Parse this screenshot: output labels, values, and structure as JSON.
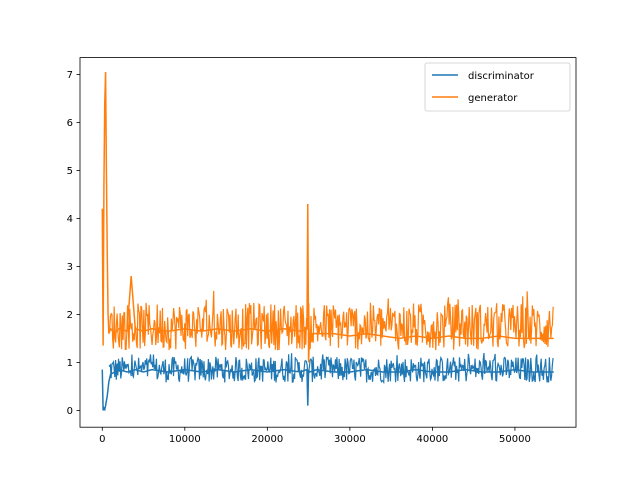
{
  "chart_data": {
    "type": "line",
    "title": "",
    "xlabel": "",
    "ylabel": "",
    "xlim": [
      -2700,
      57400
    ],
    "ylim": [
      -0.35,
      7.35
    ],
    "x_ticks": [
      0,
      10000,
      20000,
      30000,
      40000,
      50000
    ],
    "x_tick_labels": [
      "0",
      "10000",
      "20000",
      "30000",
      "40000",
      "50000"
    ],
    "y_ticks": [
      0,
      1,
      2,
      3,
      4,
      5,
      6,
      7
    ],
    "y_tick_labels": [
      "0",
      "1",
      "2",
      "3",
      "4",
      "5",
      "6",
      "7"
    ],
    "grid": false,
    "legend_position": "upper right",
    "series": [
      {
        "name": "discriminator",
        "color": "#1f77b4",
        "x": [
          0,
          100,
          200,
          300,
          400,
          600,
          800,
          1000,
          1500,
          2000,
          3000,
          4000,
          5000,
          6000,
          8000,
          10000,
          12000,
          14000,
          16000,
          18000,
          20000,
          22000,
          24000,
          24800,
          24900,
          25000,
          25100,
          26000,
          28000,
          30000,
          32000,
          34000,
          36000,
          38000,
          40000,
          42000,
          44000,
          46000,
          48000,
          50000,
          52000,
          54000,
          54700
        ],
        "values": [
          0.85,
          0.0,
          0.05,
          0.02,
          0.1,
          0.3,
          0.6,
          0.75,
          0.8,
          0.85,
          0.8,
          0.85,
          0.8,
          0.85,
          0.8,
          0.85,
          0.8,
          0.85,
          0.8,
          0.85,
          0.8,
          0.85,
          0.8,
          0.85,
          0.1,
          0.85,
          0.8,
          0.85,
          0.8,
          0.8,
          0.85,
          0.8,
          0.8,
          0.85,
          0.8,
          0.8,
          0.85,
          0.8,
          0.8,
          0.85,
          0.8,
          0.8,
          0.8
        ],
        "band_low": 0.55,
        "band_high": 1.15
      },
      {
        "name": "generator",
        "color": "#ff7f0e",
        "x": [
          0,
          100,
          200,
          300,
          400,
          500,
          600,
          700,
          800,
          1000,
          1500,
          2000,
          3000,
          3500,
          4000,
          5000,
          6000,
          8000,
          10000,
          12000,
          14000,
          16000,
          18000,
          20000,
          22000,
          24000,
          24800,
          24900,
          25000,
          25100,
          26000,
          28000,
          30000,
          32000,
          34000,
          36000,
          38000,
          40000,
          42000,
          44000,
          46000,
          48000,
          50000,
          52000,
          54000,
          54700
        ],
        "values": [
          4.2,
          1.35,
          4.7,
          6.4,
          7.05,
          5.0,
          3.3,
          2.0,
          1.6,
          1.7,
          1.6,
          1.7,
          1.65,
          2.8,
          1.7,
          1.65,
          1.7,
          1.65,
          1.7,
          1.65,
          1.7,
          1.65,
          1.7,
          1.65,
          1.7,
          1.65,
          1.7,
          4.3,
          1.0,
          1.6,
          1.6,
          1.6,
          1.55,
          1.6,
          1.55,
          1.5,
          1.55,
          1.5,
          1.55,
          1.5,
          1.5,
          1.55,
          1.5,
          1.5,
          1.5,
          1.5
        ],
        "band_low": 1.2,
        "band_high": 2.3
      }
    ]
  }
}
